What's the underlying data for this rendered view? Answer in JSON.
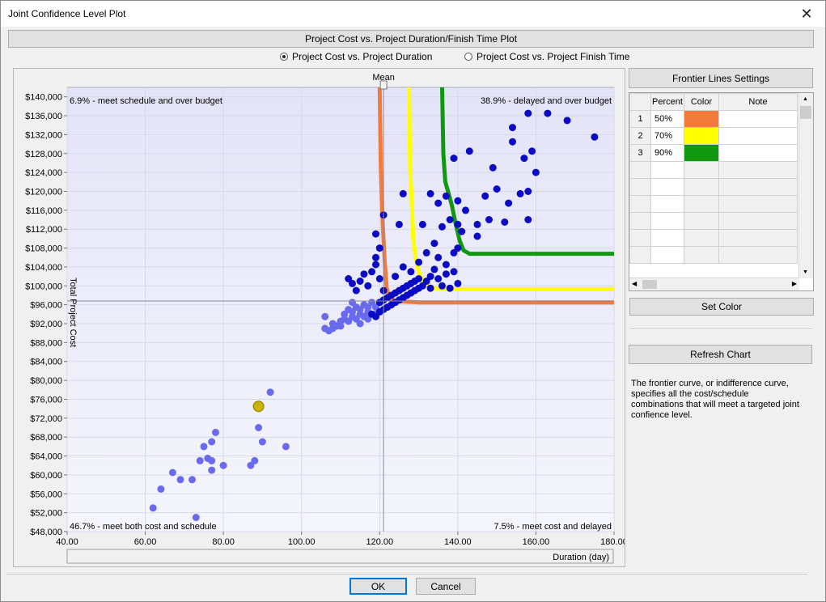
{
  "window": {
    "title": "Joint Confidence Level Plot",
    "close_glyph": "✕"
  },
  "plot_title": "Project Cost vs. Project Duration/Finish Time Plot",
  "radio": {
    "duration": "Project Cost vs. Project Duration",
    "finish": "Project Cost vs. Project Finish Time",
    "selected": "duration"
  },
  "frontier_header": "Frontier Lines Settings",
  "grid": {
    "headers": [
      "Percent",
      "Color",
      "Note"
    ],
    "rows": [
      {
        "num": "1",
        "percent": "50%",
        "color": "#f47a3c",
        "note": ""
      },
      {
        "num": "2",
        "percent": "70%",
        "color": "#ffff00",
        "note": ""
      },
      {
        "num": "3",
        "percent": "90%",
        "color": "#109810",
        "note": ""
      }
    ]
  },
  "buttons": {
    "set_color": "Set Color",
    "refresh": "Refresh Chart",
    "ok": "OK",
    "cancel": "Cancel"
  },
  "description": "The frontier curve, or indifference curve, specifies all the cost/schedule combinations that will meet a targeted joint confience level.",
  "chart_data": {
    "type": "scatter",
    "xlabel": "Duration (day)",
    "ylabel": "Total Project Cost",
    "mean_label": "Mean",
    "xlim": [
      40,
      180
    ],
    "ylim": [
      48000,
      142000
    ],
    "xticks": [
      "40.00",
      "60.00",
      "80.00",
      "100.00",
      "120.00",
      "140.00",
      "160.00",
      "180.00"
    ],
    "yticks": [
      "$48,000",
      "$52,000",
      "$56,000",
      "$60,000",
      "$64,000",
      "$68,000",
      "$72,000",
      "$76,000",
      "$80,000",
      "$84,000",
      "$88,000",
      "$92,000",
      "$96,000",
      "$100,000",
      "$104,000",
      "$108,000",
      "$112,000",
      "$116,000",
      "$120,000",
      "$124,000",
      "$128,000",
      "$132,000",
      "$136,000",
      "$140,000"
    ],
    "mean": {
      "x": 121,
      "y": 96800
    },
    "quadrants": {
      "top_left": "6.9% - meet schedule and over budget",
      "top_right": "38.9% - delayed and over budget",
      "bottom_left": "46.7% - meet both cost and schedule",
      "bottom_right": "7.5% - meet cost and delayed"
    },
    "highlight_point": {
      "x": 89,
      "y": 74500,
      "color": "#c8b400"
    },
    "series": [
      {
        "color": "#6a6aee",
        "points": [
          [
            62,
            53000
          ],
          [
            64,
            57000
          ],
          [
            67,
            60500
          ],
          [
            69,
            59000
          ],
          [
            72,
            59000
          ],
          [
            73,
            51000
          ],
          [
            74,
            63000
          ],
          [
            75,
            66000
          ],
          [
            76,
            63500
          ],
          [
            77,
            63000
          ],
          [
            77,
            67000
          ],
          [
            77,
            61000
          ],
          [
            78,
            69000
          ],
          [
            80,
            62000
          ],
          [
            87,
            62000
          ],
          [
            88,
            63000
          ],
          [
            89,
            70000
          ],
          [
            90,
            67000
          ],
          [
            92,
            77500
          ],
          [
            96,
            66000
          ],
          [
            106,
            93500
          ],
          [
            106,
            91000
          ],
          [
            107,
            90500
          ],
          [
            108,
            92000
          ],
          [
            109,
            91500
          ],
          [
            110,
            92500
          ],
          [
            111,
            93000
          ],
          [
            112,
            92500
          ],
          [
            113,
            93500
          ],
          [
            114,
            93000
          ],
          [
            115,
            94000
          ],
          [
            116,
            93500
          ],
          [
            117,
            94500
          ],
          [
            112,
            95000
          ],
          [
            114,
            95500
          ],
          [
            116,
            96000
          ],
          [
            118,
            96500
          ],
          [
            119,
            95500
          ],
          [
            113,
            96500
          ],
          [
            115,
            92000
          ],
          [
            117,
            93000
          ],
          [
            119,
            94000
          ],
          [
            108,
            91000
          ],
          [
            110,
            91500
          ],
          [
            111,
            94000
          ],
          [
            113,
            94500
          ],
          [
            115,
            95000
          ],
          [
            117,
            95500
          ]
        ]
      },
      {
        "color": "#0b0bc4",
        "points": [
          [
            118,
            94000
          ],
          [
            119,
            93500
          ],
          [
            120,
            94500
          ],
          [
            121,
            95000
          ],
          [
            122,
            95500
          ],
          [
            123,
            96000
          ],
          [
            124,
            96500
          ],
          [
            125,
            97000
          ],
          [
            126,
            97500
          ],
          [
            127,
            98000
          ],
          [
            128,
            98500
          ],
          [
            129,
            99000
          ],
          [
            130,
            99500
          ],
          [
            131,
            100000
          ],
          [
            122,
            97500
          ],
          [
            124,
            98500
          ],
          [
            126,
            99500
          ],
          [
            128,
            100500
          ],
          [
            130,
            101500
          ],
          [
            120,
            96500
          ],
          [
            121,
            97000
          ],
          [
            123,
            98000
          ],
          [
            125,
            99000
          ],
          [
            127,
            100000
          ],
          [
            129,
            101000
          ],
          [
            132,
            101000
          ],
          [
            133,
            102000
          ],
          [
            134,
            103500
          ],
          [
            135,
            101500
          ],
          [
            137,
            102500
          ],
          [
            139,
            103000
          ],
          [
            140,
            100500
          ],
          [
            138,
            99500
          ],
          [
            136,
            100000
          ],
          [
            133,
            99500
          ],
          [
            112,
            101500
          ],
          [
            113,
            100500
          ],
          [
            114,
            99000
          ],
          [
            115,
            101000
          ],
          [
            116,
            102500
          ],
          [
            117,
            100000
          ],
          [
            118,
            103000
          ],
          [
            119,
            104500
          ],
          [
            120,
            101500
          ],
          [
            119,
            106000
          ],
          [
            120,
            108000
          ],
          [
            119,
            111000
          ],
          [
            121,
            99000
          ],
          [
            124,
            102000
          ],
          [
            126,
            104000
          ],
          [
            128,
            103000
          ],
          [
            130,
            105000
          ],
          [
            132,
            107000
          ],
          [
            134,
            109000
          ],
          [
            135,
            106000
          ],
          [
            137,
            104500
          ],
          [
            139,
            107000
          ],
          [
            140,
            108000
          ],
          [
            136,
            112500
          ],
          [
            138,
            114000
          ],
          [
            140,
            118000
          ],
          [
            140,
            113000
          ],
          [
            142,
            116000
          ],
          [
            145,
            110500
          ],
          [
            145,
            113000
          ],
          [
            147,
            119000
          ],
          [
            148,
            114000
          ],
          [
            150,
            120500
          ],
          [
            152,
            113500
          ],
          [
            153,
            117500
          ],
          [
            156,
            119500
          ],
          [
            158,
            120000
          ],
          [
            158,
            114000
          ],
          [
            159,
            128500
          ],
          [
            157,
            127000
          ],
          [
            160,
            124000
          ],
          [
            154,
            130500
          ],
          [
            154,
            133500
          ],
          [
            158,
            136500
          ],
          [
            163,
            136500
          ],
          [
            168,
            135000
          ],
          [
            175,
            131500
          ],
          [
            149,
            125000
          ],
          [
            143,
            128500
          ],
          [
            139,
            127000
          ],
          [
            137,
            119000
          ],
          [
            133,
            119500
          ],
          [
            141,
            111500
          ],
          [
            126,
            119500
          ],
          [
            131,
            113000
          ],
          [
            125,
            113000
          ],
          [
            135,
            117500
          ],
          [
            121,
            115000
          ]
        ]
      }
    ],
    "frontiers": [
      {
        "percent": "50%",
        "color": "#f47a3c",
        "points": [
          [
            120,
            142000
          ],
          [
            120.3,
            125000
          ],
          [
            120.8,
            113000
          ],
          [
            121.3,
            105000
          ],
          [
            121.8,
            99500
          ],
          [
            122.5,
            97500
          ],
          [
            124,
            96800
          ],
          [
            130,
            96500
          ],
          [
            180,
            96500
          ]
        ]
      },
      {
        "percent": "70%",
        "color": "#ffff00",
        "points": [
          [
            127.5,
            142000
          ],
          [
            127.8,
            125000
          ],
          [
            128.2,
            118000
          ],
          [
            128.6,
            110000
          ],
          [
            129.2,
            106000
          ],
          [
            130,
            103000
          ],
          [
            131.5,
            100500
          ],
          [
            134,
            99500
          ],
          [
            140,
            99300
          ],
          [
            180,
            99300
          ]
        ]
      },
      {
        "percent": "90%",
        "color": "#109810",
        "points": [
          [
            136,
            142000
          ],
          [
            136.3,
            128000
          ],
          [
            136.8,
            122000
          ],
          [
            137.5,
            120000
          ],
          [
            138.5,
            117000
          ],
          [
            139.5,
            113000
          ],
          [
            140.5,
            109500
          ],
          [
            141.5,
            107500
          ],
          [
            143,
            106800
          ],
          [
            180,
            106800
          ]
        ]
      }
    ]
  }
}
